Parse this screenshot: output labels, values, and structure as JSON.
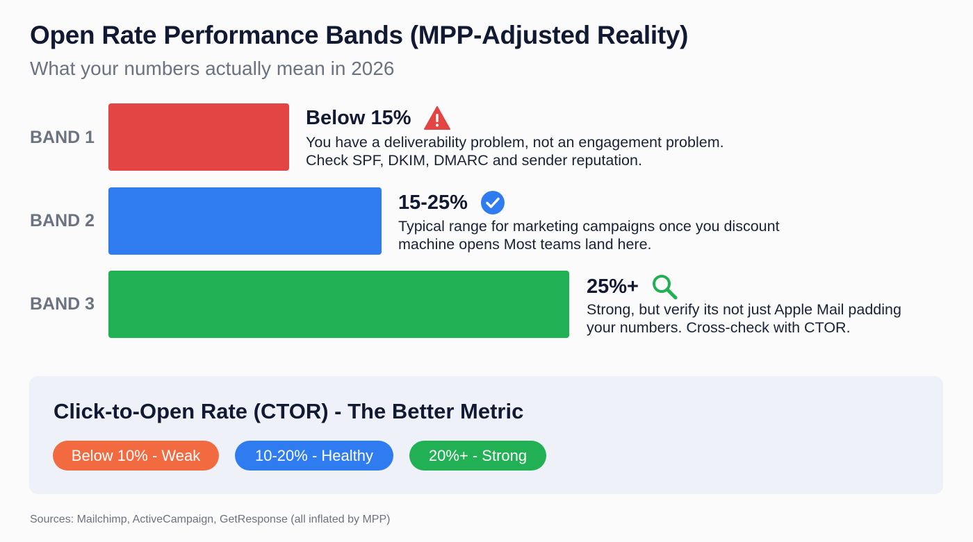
{
  "header": {
    "title": "Open Rate Performance Bands (MPP-Adjusted Reality)",
    "subtitle": "What your numbers actually mean in 2026"
  },
  "bands": [
    {
      "label": "BAND 1",
      "range": "Below 15%",
      "icon": "warning-triangle-icon",
      "color": "#e34444",
      "line1": "You have a deliverability problem, not an engagement problem.",
      "line2": "Check SPF, DKIM, DMARC and sender reputation."
    },
    {
      "label": "BAND 2",
      "range": "15-25%",
      "icon": "check-circle-icon",
      "color": "#2f7bf0",
      "line1": "Typical range for marketing campaigns once you discount",
      "line2": "machine opens Most teams land here."
    },
    {
      "label": "BAND 3",
      "range": "25%+",
      "icon": "magnifier-icon",
      "color": "#22b055",
      "line1": "Strong, but verify its not just Apple Mail padding",
      "line2": "your numbers. Cross-check with CTOR."
    }
  ],
  "ctor": {
    "title": "Click-to-Open Rate (CTOR) - The Better Metric",
    "pills": [
      {
        "label": "Below 10% - Weak",
        "color": "#f26a40"
      },
      {
        "label": "10-20% - Healthy",
        "color": "#2f7bf0"
      },
      {
        "label": "20%+ - Strong",
        "color": "#22b055"
      }
    ]
  },
  "footer": {
    "sources": "Sources: Mailchimp, ActiveCampaign, GetResponse (all inflated by MPP)"
  }
}
